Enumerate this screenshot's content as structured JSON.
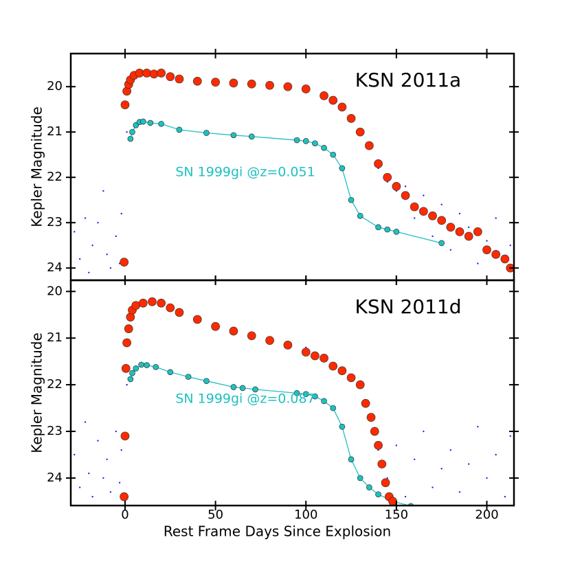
{
  "chart_data": [
    {
      "type": "scatter",
      "ylabel": "Kepler Magnitude",
      "annotation": "KSN 2011a",
      "note": "SN 1999gi @z=0.051",
      "xlim": [
        -30,
        215
      ],
      "xticks": [
        0,
        50,
        100,
        150,
        200
      ],
      "show_xtick_labels": false,
      "ylim": [
        24.27,
        19.27
      ],
      "yticks": [
        20,
        21,
        22,
        23,
        24
      ],
      "series": [
        {
          "color": "#1f1fff",
          "marker_size": 1.2,
          "line": false,
          "x": [
            -28,
            -25,
            -22,
            -20,
            -18,
            -15,
            -12,
            -10,
            -8,
            -5,
            -3,
            -2,
            1,
            5,
            20,
            40,
            60,
            80,
            100,
            120,
            130,
            140,
            145,
            150,
            155,
            160,
            165,
            170,
            175,
            180,
            185,
            190,
            195,
            200,
            205,
            210,
            213
          ],
          "values": [
            23.2,
            23.8,
            22.9,
            24.1,
            23.5,
            23.0,
            22.3,
            23.7,
            24.0,
            23.3,
            23.9,
            22.8,
            21.0,
            19.8,
            19.75,
            19.9,
            19.95,
            20.0,
            20.1,
            20.4,
            21.0,
            21.8,
            22.1,
            22.3,
            22.2,
            22.9,
            22.4,
            23.3,
            22.6,
            23.6,
            22.8,
            23.1,
            23.9,
            23.4,
            22.9,
            23.8,
            23.5
          ]
        },
        {
          "color": "#20c0c0",
          "marker_size": 4,
          "line": true,
          "x": [
            3,
            4,
            6,
            8,
            10,
            14,
            20,
            30,
            45,
            60,
            70,
            95,
            100,
            105,
            110,
            115,
            120,
            125,
            130,
            140,
            145,
            150,
            175
          ],
          "values": [
            21.15,
            21.0,
            20.85,
            20.78,
            20.77,
            20.8,
            20.82,
            20.95,
            21.02,
            21.07,
            21.1,
            21.18,
            21.2,
            21.25,
            21.35,
            21.5,
            21.8,
            22.5,
            22.85,
            23.1,
            23.15,
            23.2,
            23.45
          ]
        },
        {
          "color": "#ff2a00",
          "marker_size": 6,
          "line": false,
          "x": [
            -0.5,
            0,
            1,
            2,
            3,
            5,
            8,
            12,
            16,
            20,
            25,
            30,
            40,
            50,
            60,
            70,
            80,
            90,
            100,
            110,
            115,
            120,
            125,
            130,
            135,
            140,
            145,
            150,
            155,
            160,
            165,
            170,
            175,
            180,
            185,
            190,
            195,
            200,
            205,
            210,
            213
          ],
          "values": [
            23.87,
            20.4,
            20.1,
            19.95,
            19.85,
            19.75,
            19.7,
            19.7,
            19.72,
            19.7,
            19.78,
            19.83,
            19.88,
            19.9,
            19.92,
            19.94,
            19.97,
            20.0,
            20.05,
            20.2,
            20.3,
            20.45,
            20.7,
            21.0,
            21.3,
            21.7,
            22.0,
            22.2,
            22.4,
            22.65,
            22.75,
            22.85,
            22.95,
            23.1,
            23.2,
            23.3,
            23.2,
            23.6,
            23.7,
            23.8,
            24.0
          ]
        }
      ]
    },
    {
      "type": "scatter",
      "ylabel": "Kepler Magnitude",
      "annotation": "KSN 2011d",
      "note": "SN 1999gi @z=0.087",
      "xlabel": "Rest Frame Days Since Explosion",
      "xlim": [
        -30,
        215
      ],
      "xticks": [
        0,
        50,
        100,
        150,
        200
      ],
      "show_xtick_labels": true,
      "ylim": [
        24.59,
        19.76
      ],
      "yticks": [
        20,
        21,
        22,
        23,
        24
      ],
      "series": [
        {
          "color": "#1f1fff",
          "marker_size": 1.2,
          "line": false,
          "x": [
            -28,
            -25,
            -22,
            -20,
            -18,
            -15,
            -12,
            -10,
            -8,
            -5,
            -3,
            -2,
            1,
            5,
            20,
            40,
            60,
            80,
            100,
            120,
            130,
            140,
            145,
            150,
            155,
            160,
            165,
            170,
            175,
            180,
            185,
            190,
            195,
            200,
            205,
            210,
            213
          ],
          "values": [
            23.5,
            24.2,
            22.8,
            23.9,
            24.4,
            23.2,
            24.0,
            23.6,
            24.3,
            23.0,
            24.1,
            23.4,
            22.0,
            20.3,
            20.2,
            20.6,
            20.9,
            21.0,
            21.2,
            21.7,
            22.0,
            23.4,
            24.0,
            23.3,
            24.4,
            23.6,
            23.0,
            24.2,
            23.8,
            23.4,
            24.3,
            23.7,
            22.9,
            24.0,
            23.5,
            24.4,
            23.1
          ]
        },
        {
          "color": "#20c0c0",
          "marker_size": 4,
          "line": true,
          "x": [
            3,
            4,
            6,
            9,
            12,
            17,
            25,
            35,
            45,
            60,
            65,
            72,
            95,
            100,
            105,
            110,
            115,
            120,
            125,
            130,
            135,
            140,
            148,
            158
          ],
          "values": [
            21.88,
            21.75,
            21.65,
            21.57,
            21.58,
            21.62,
            21.73,
            21.83,
            21.92,
            22.05,
            22.07,
            22.1,
            22.18,
            22.2,
            22.25,
            22.35,
            22.5,
            22.9,
            23.6,
            24.0,
            24.2,
            24.35,
            24.5,
            24.6
          ]
        },
        {
          "color": "#ff2a00",
          "marker_size": 6,
          "line": false,
          "x": [
            -0.5,
            0,
            0.5,
            1,
            2,
            3,
            4,
            6,
            10,
            15,
            20,
            25,
            30,
            40,
            50,
            60,
            70,
            80,
            90,
            100,
            105,
            110,
            115,
            120,
            125,
            130,
            133,
            136,
            138,
            140,
            142,
            144,
            146,
            148
          ],
          "values": [
            24.4,
            23.1,
            21.65,
            21.1,
            20.8,
            20.55,
            20.4,
            20.3,
            20.25,
            20.22,
            20.25,
            20.35,
            20.45,
            20.6,
            20.75,
            20.85,
            20.95,
            21.05,
            21.15,
            21.3,
            21.38,
            21.43,
            21.6,
            21.7,
            21.85,
            22.0,
            22.4,
            22.7,
            23.0,
            23.3,
            23.7,
            24.1,
            24.4,
            24.5
          ]
        }
      ]
    }
  ]
}
